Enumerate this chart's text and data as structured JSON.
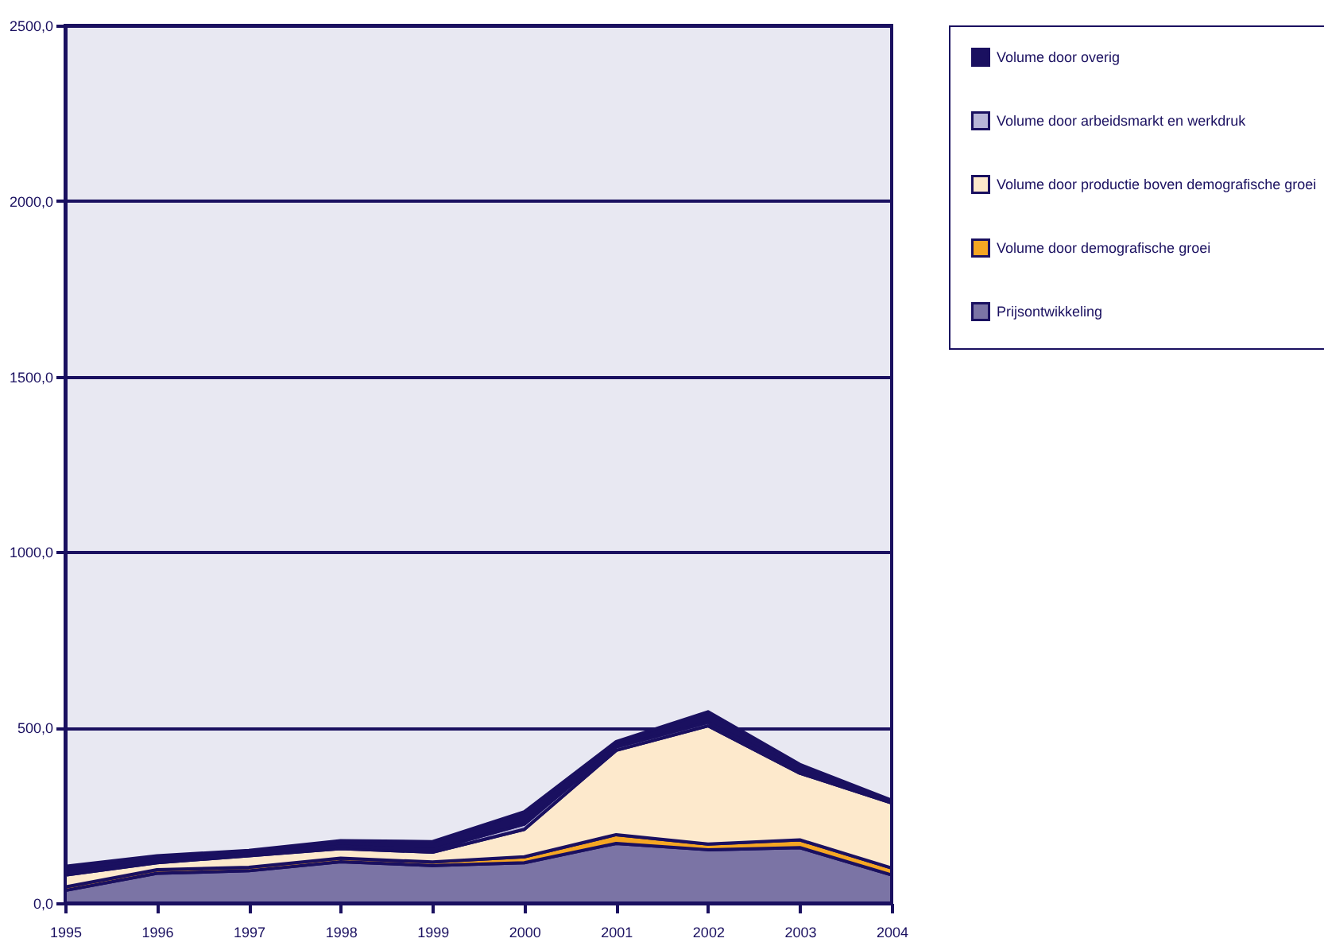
{
  "chart_data": {
    "type": "area",
    "stacked": true,
    "categories": [
      "1995",
      "1996",
      "1997",
      "1998",
      "1999",
      "2000",
      "2001",
      "2002",
      "2003",
      "2004"
    ],
    "series": [
      {
        "name": "Prijsontwikkeling",
        "color": "#7b74a5",
        "values": [
          36,
          85,
          92,
          118,
          107,
          115,
          170,
          152,
          158,
          80
        ]
      },
      {
        "name": "Volume door demografische groei",
        "color": "#f5a623",
        "values": [
          10,
          10,
          10,
          10,
          10,
          17,
          25,
          16,
          22,
          20
        ]
      },
      {
        "name": "Volume door productie boven demografische groei",
        "color": "#fde9cc",
        "values": [
          34,
          20,
          33,
          27,
          28,
          78,
          240,
          337,
          190,
          185
        ]
      },
      {
        "name": "Volume door arbeidsmarkt en werkdruk",
        "color": "#b8b5d8",
        "values": [
          5,
          5,
          5,
          7,
          7,
          15,
          10,
          10,
          8,
          3
        ]
      },
      {
        "name": "Volume door overig",
        "color": "#1a1060",
        "values": [
          20,
          15,
          10,
          16,
          23,
          35,
          15,
          30,
          17,
          5
        ]
      }
    ],
    "ylim": [
      0,
      2500
    ],
    "yticks": [
      {
        "value": 0,
        "label": "0,0"
      },
      {
        "value": 500,
        "label": "500,0"
      },
      {
        "value": 1000,
        "label": "1000,0"
      },
      {
        "value": 1500,
        "label": "1500,0"
      },
      {
        "value": 2000,
        "label": "2000,0"
      },
      {
        "value": 2500,
        "label": "2500,0"
      }
    ],
    "grid": "y",
    "legend": "right"
  }
}
